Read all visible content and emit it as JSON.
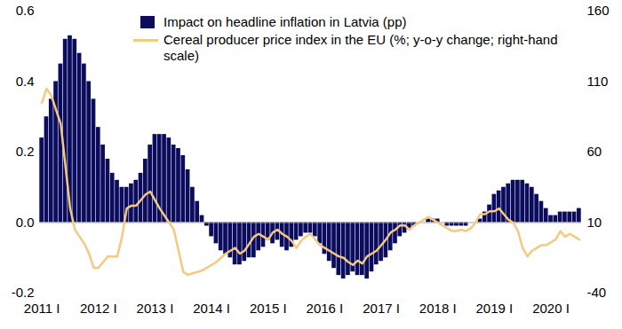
{
  "chart_data": {
    "type": "bar",
    "legend": "top",
    "categories": [
      "2011 I",
      null,
      null,
      null,
      null,
      null,
      null,
      null,
      null,
      null,
      null,
      null,
      "2012 I",
      null,
      null,
      null,
      null,
      null,
      null,
      null,
      null,
      null,
      null,
      null,
      "2013 I",
      null,
      null,
      null,
      null,
      null,
      null,
      null,
      null,
      null,
      null,
      null,
      "2014 I",
      null,
      null,
      null,
      null,
      null,
      null,
      null,
      null,
      null,
      null,
      null,
      "2015 I",
      null,
      null,
      null,
      null,
      null,
      null,
      null,
      null,
      null,
      null,
      null,
      "2016 I",
      null,
      null,
      null,
      null,
      null,
      null,
      null,
      null,
      null,
      null,
      null,
      "2017 I",
      null,
      null,
      null,
      null,
      null,
      null,
      null,
      null,
      null,
      null,
      null,
      "2018 I",
      null,
      null,
      null,
      null,
      null,
      null,
      null,
      null,
      null,
      null,
      null,
      "2019 I",
      null,
      null,
      null,
      null,
      null,
      null,
      null,
      null,
      null,
      null,
      null,
      "2020 I",
      null,
      null,
      null,
      null,
      null,
      null
    ],
    "series": [
      {
        "name": "Impact on headline inflation in Latvia (pp)",
        "type": "bar",
        "color": "#0b0c5e",
        "values": [
          0.24,
          0.3,
          0.35,
          0.4,
          0.45,
          0.52,
          0.53,
          0.52,
          0.48,
          0.45,
          0.4,
          0.35,
          0.27,
          0.22,
          0.18,
          0.14,
          0.12,
          0.1,
          0.1,
          0.11,
          0.12,
          0.14,
          0.18,
          0.22,
          0.25,
          0.25,
          0.25,
          0.24,
          0.22,
          0.21,
          0.19,
          0.15,
          0.1,
          0.06,
          0.02,
          -0.01,
          -0.04,
          -0.06,
          -0.08,
          -0.09,
          -0.1,
          -0.12,
          -0.12,
          -0.11,
          -0.1,
          -0.1,
          -0.08,
          -0.07,
          -0.05,
          -0.06,
          -0.05,
          -0.07,
          -0.08,
          -0.07,
          -0.05,
          -0.04,
          -0.03,
          -0.03,
          -0.04,
          -0.06,
          -0.09,
          -0.11,
          -0.13,
          -0.15,
          -0.16,
          -0.15,
          -0.14,
          -0.15,
          -0.15,
          -0.16,
          -0.14,
          -0.12,
          -0.11,
          -0.1,
          -0.08,
          -0.06,
          -0.04,
          -0.03,
          -0.02,
          -0.01,
          0,
          0,
          0.01,
          0.01,
          0.01,
          0,
          -0.01,
          -0.01,
          -0.01,
          -0.01,
          -0.01,
          0,
          0,
          0.01,
          0.03,
          0.05,
          0.08,
          0.09,
          0.1,
          0.11,
          0.12,
          0.12,
          0.12,
          0.11,
          0.1,
          0.08,
          0.06,
          0.04,
          0.02,
          0.02,
          0.03,
          0.03,
          0.03,
          0.03,
          0.04
        ]
      },
      {
        "name": "Cereal producer price index in the EU (%; y-o-y change; right-hand scale)",
        "type": "line",
        "color": "#f5c97f",
        "axis": "y2",
        "values": [
          95,
          105,
          100,
          90,
          80,
          50,
          20,
          5,
          0,
          -5,
          -12,
          -22,
          -22,
          -18,
          -14,
          -14,
          -14,
          0,
          20,
          22,
          22,
          26,
          30,
          32,
          26,
          20,
          15,
          10,
          5,
          -10,
          -25,
          -27,
          -26,
          -25,
          -24,
          -22,
          -20,
          -18,
          -15,
          -12,
          -10,
          -8,
          -12,
          -10,
          -5,
          0,
          2,
          0,
          -2,
          3,
          5,
          2,
          0,
          -3,
          -8,
          -3,
          0,
          2,
          -2,
          -6,
          -8,
          -10,
          -12,
          -14,
          -15,
          -18,
          -20,
          -17,
          -19,
          -14,
          -12,
          -10,
          -6,
          -2,
          3,
          5,
          8,
          8,
          5,
          8,
          10,
          12,
          14,
          12,
          10,
          8,
          6,
          4,
          4,
          5,
          4,
          6,
          10,
          16,
          16,
          18,
          18,
          20,
          16,
          12,
          10,
          4,
          -8,
          -14,
          -10,
          -8,
          -6,
          -6,
          -4,
          -2,
          4,
          0,
          2,
          0,
          -2
        ]
      }
    ],
    "ylim": [
      -0.2,
      0.6
    ],
    "yticks": [
      -0.2,
      {
        "value": 0,
        "label": "0.0"
      },
      0.2,
      0.4,
      0.6
    ],
    "y2lim": [
      -40,
      160
    ],
    "y2ticks": [
      -40,
      10,
      60,
      110,
      160
    ]
  }
}
